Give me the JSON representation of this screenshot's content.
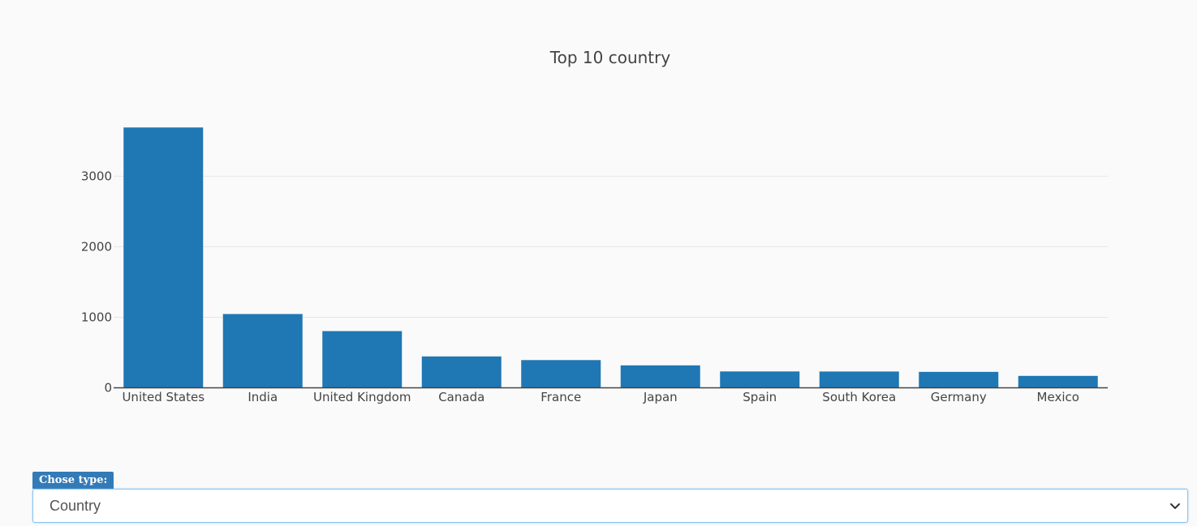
{
  "chart_data": {
    "type": "bar",
    "title": "Top 10 country",
    "xlabel": "",
    "ylabel": "",
    "categories": [
      "United States",
      "India",
      "United Kingdom",
      "Canada",
      "France",
      "Japan",
      "Spain",
      "South Korea",
      "Germany",
      "Mexico"
    ],
    "values": [
      3690,
      1046,
      804,
      445,
      393,
      318,
      232,
      231,
      226,
      169
    ],
    "ylim": [
      0,
      3900
    ],
    "yticks": [
      0,
      1000,
      2000,
      3000
    ],
    "ytick_labels": [
      "0",
      "1000",
      "2000",
      "3000"
    ],
    "grid": true,
    "bar_color": "#1f77b4"
  },
  "controls": {
    "type_label": "Chose type:",
    "type_value": "Country",
    "chevron_icon": "chevron-down-icon"
  },
  "colors": {
    "label_bg": "#337ab7",
    "select_border": "#8cc4f0",
    "background": "#fafafa"
  }
}
